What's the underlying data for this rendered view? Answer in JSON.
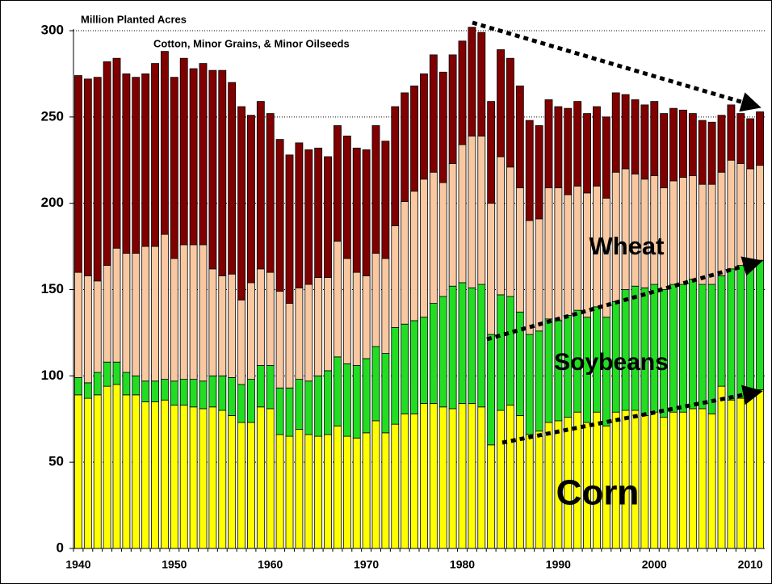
{
  "chart_data": {
    "type": "stacked_bar",
    "title": "Million Planted Acres",
    "categories": [
      1940,
      null,
      null,
      null,
      null,
      null,
      null,
      null,
      null,
      null,
      1950,
      null,
      null,
      null,
      null,
      null,
      null,
      null,
      null,
      null,
      1960,
      null,
      null,
      null,
      null,
      null,
      null,
      null,
      null,
      null,
      1970,
      null,
      null,
      null,
      null,
      null,
      null,
      null,
      null,
      null,
      1980,
      null,
      null,
      null,
      null,
      null,
      null,
      null,
      null,
      null,
      1990,
      null,
      null,
      null,
      null,
      null,
      null,
      null,
      null,
      null,
      2000,
      null,
      null,
      null,
      null,
      null,
      null,
      null,
      null,
      null,
      2010,
      null
    ],
    "series": [
      {
        "name": "Corn",
        "color": "#ffff00",
        "values": [
          89,
          87,
          89,
          94,
          95,
          89,
          89,
          85,
          85,
          86,
          83,
          83,
          82,
          81,
          82,
          80,
          77,
          73,
          73,
          82,
          81,
          66,
          65,
          69,
          66,
          65,
          66,
          71,
          65,
          64,
          67,
          74,
          67,
          72,
          78,
          78,
          84,
          84,
          82,
          81,
          84,
          84,
          82,
          60,
          80,
          83,
          77,
          66,
          68,
          73,
          74,
          76,
          79,
          73,
          79,
          71,
          79,
          80,
          80,
          77,
          79,
          76,
          79,
          79,
          81,
          81,
          78,
          94,
          86,
          87,
          88,
          92
        ]
      },
      {
        "name": "Soybeans",
        "color": "#22dd22",
        "values": [
          10,
          9,
          13,
          14,
          13,
          13,
          11,
          12,
          12,
          12,
          14,
          15,
          16,
          16,
          18,
          20,
          22,
          22,
          25,
          24,
          25,
          27,
          28,
          29,
          31,
          35,
          37,
          40,
          42,
          42,
          43,
          43,
          46,
          56,
          52,
          54,
          50,
          58,
          64,
          71,
          70,
          67,
          71,
          64,
          67,
          63,
          60,
          58,
          58,
          60,
          58,
          59,
          59,
          61,
          61,
          63,
          64,
          70,
          72,
          74,
          74,
          74,
          74,
          74,
          75,
          72,
          75,
          64,
          76,
          77,
          78,
          75
        ]
      },
      {
        "name": "Wheat",
        "color": "#f9c8a0",
        "values": [
          61,
          62,
          53,
          56,
          66,
          69,
          71,
          78,
          78,
          84,
          71,
          78,
          78,
          79,
          62,
          58,
          60,
          49,
          56,
          56,
          54,
          56,
          49,
          53,
          56,
          57,
          54,
          67,
          61,
          54,
          48,
          54,
          55,
          59,
          71,
          75,
          80,
          76,
          66,
          71,
          80,
          88,
          86,
          76,
          80,
          75,
          72,
          66,
          65,
          76,
          77,
          70,
          72,
          72,
          70,
          69,
          75,
          70,
          65,
          63,
          63,
          59,
          60,
          62,
          60,
          58,
          58,
          60,
          63,
          59,
          54,
          55
        ]
      },
      {
        "name": "Cotton, Minor Grains, & Minor Oilseeds",
        "color": "#800000",
        "values": [
          114,
          114,
          118,
          118,
          110,
          104,
          102,
          100,
          106,
          106,
          105,
          108,
          102,
          105,
          115,
          119,
          111,
          112,
          97,
          97,
          92,
          88,
          86,
          84,
          78,
          75,
          70,
          67,
          71,
          72,
          73,
          74,
          68,
          69,
          63,
          61,
          61,
          68,
          64,
          63,
          60,
          63,
          60,
          59,
          62,
          63,
          59,
          58,
          54,
          51,
          47,
          50,
          49,
          46,
          46,
          47,
          46,
          43,
          43,
          43,
          43,
          43,
          42,
          39,
          36,
          37,
          36,
          33,
          32,
          29,
          29,
          31
        ]
      }
    ],
    "ylim": [
      0,
      300
    ],
    "yticks": [
      0,
      50,
      100,
      150,
      200,
      250,
      300
    ],
    "grid": true
  }
}
